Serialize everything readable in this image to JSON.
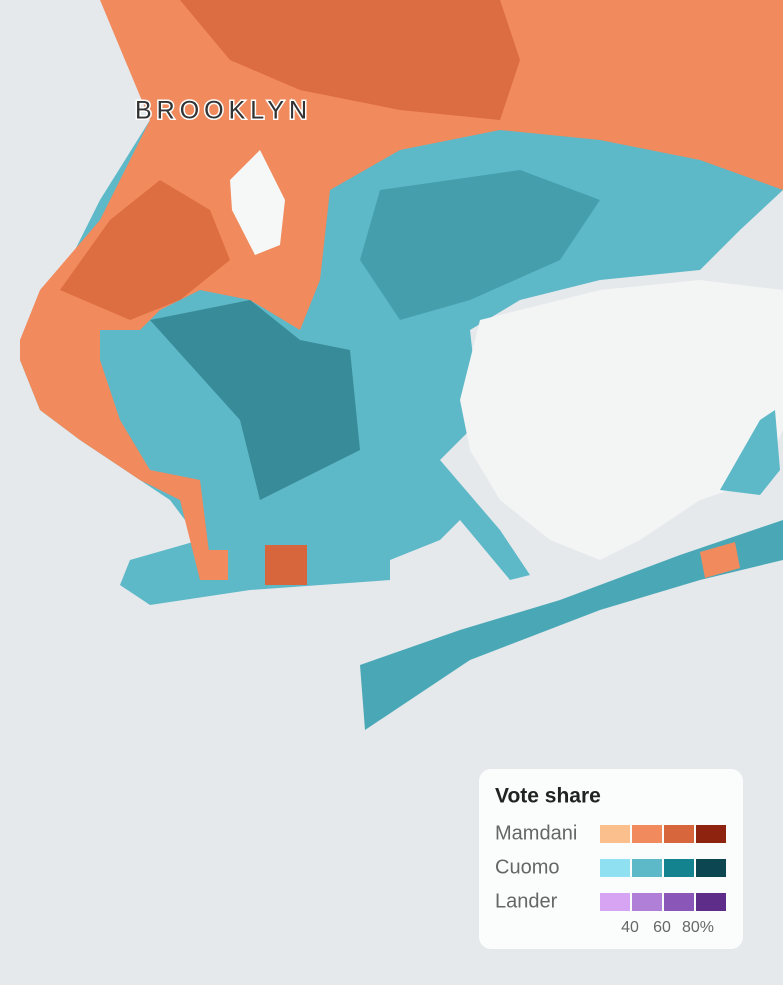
{
  "map": {
    "label": "BROOKLYN"
  },
  "legend": {
    "title": "Vote share",
    "rows": [
      {
        "name": "Mamdani",
        "colors": [
          "#fbbf8e",
          "#f18a5c",
          "#d8663c",
          "#8e2410"
        ]
      },
      {
        "name": "Cuomo",
        "colors": [
          "#8fe1f1",
          "#5db8c8",
          "#12838f",
          "#0c4650"
        ]
      },
      {
        "name": "Lander",
        "colors": [
          "#d6a4f2",
          "#b07fd8",
          "#8a56b8",
          "#5e2d8a"
        ]
      }
    ],
    "ticks": [
      40,
      60,
      {
        "value": 80,
        "label": "80%"
      }
    ]
  }
}
